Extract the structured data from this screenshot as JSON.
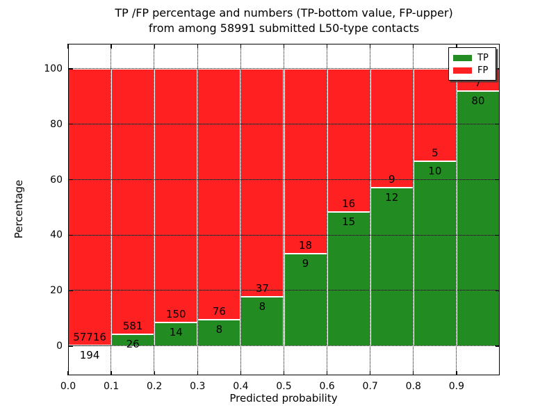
{
  "title": {
    "line1": "TP /FP percentage and numbers (TP-bottom value, FP-upper)",
    "line2": "from among 58991 submitted L50-type contacts"
  },
  "chart_data": {
    "type": "bar",
    "stacked": true,
    "orientation": "vertical",
    "title": "TP /FP percentage and numbers (TP-bottom value, FP-upper) from among 58991 submitted L50-type contacts",
    "total_submitted_contacts": 58991,
    "xlabel": "Predicted probability",
    "ylabel": "Percentage",
    "bin_starts": [
      0.0,
      0.1,
      0.2,
      0.3,
      0.4,
      0.5,
      0.6,
      0.7,
      0.8,
      0.9
    ],
    "bin_width": 0.1,
    "series": [
      {
        "name": "TP",
        "color": "#228b22",
        "counts": [
          194,
          26,
          14,
          8,
          8,
          9,
          15,
          12,
          10,
          80
        ],
        "percent": [
          0.33,
          4.28,
          8.54,
          9.52,
          17.78,
          33.33,
          48.39,
          57.14,
          66.67,
          91.95
        ]
      },
      {
        "name": "FP",
        "color": "#ff2121",
        "counts": [
          57716,
          581,
          150,
          76,
          37,
          18,
          16,
          9,
          5,
          7
        ],
        "percent": [
          99.67,
          95.72,
          91.46,
          90.48,
          82.22,
          66.67,
          51.61,
          42.86,
          33.33,
          8.05
        ]
      }
    ],
    "xticks": [
      "0.0",
      "0.1",
      "0.2",
      "0.3",
      "0.4",
      "0.5",
      "0.6",
      "0.7",
      "0.8",
      "0.9"
    ],
    "yticks": [
      0,
      20,
      40,
      60,
      80,
      100
    ],
    "xlim": [
      0.0,
      1.0
    ],
    "ylim": [
      -10.5,
      109.0
    ],
    "grid": {
      "on": true,
      "style": "dotted",
      "color": "#000000",
      "above_bars": true
    },
    "legend": {
      "position": "upper-right",
      "entries": [
        {
          "label": "TP",
          "color": "#228b22"
        },
        {
          "label": "FP",
          "color": "#ff2121"
        }
      ]
    }
  }
}
